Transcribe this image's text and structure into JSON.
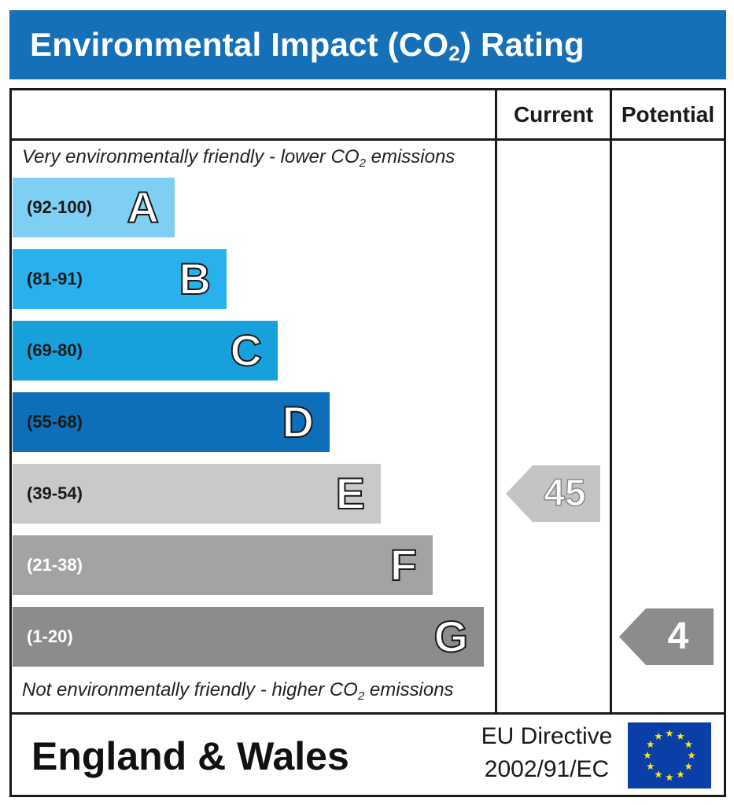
{
  "header": {
    "title_prefix": "Environmental Impact (CO",
    "title_sub": "2",
    "title_suffix": ") Rating"
  },
  "columns": {
    "current": "Current",
    "potential": "Potential"
  },
  "notes": {
    "top_prefix": "Very environmentally friendly - lower CO",
    "top_sub": "2",
    "top_suffix": " emissions",
    "bottom_prefix": "Not environmentally friendly - higher CO",
    "bottom_sub": "2",
    "bottom_suffix": " emissions"
  },
  "chart_data": {
    "type": "bar",
    "categories": [
      "A",
      "B",
      "C",
      "D",
      "E",
      "F",
      "G"
    ],
    "bands": [
      {
        "letter": "A",
        "range": "(92-100)",
        "min": 92,
        "max": 100,
        "color": "#7fcff4",
        "text_color": "#1a1a1a"
      },
      {
        "letter": "B",
        "range": "(81-91)",
        "min": 81,
        "max": 91,
        "color": "#29b1ed",
        "text_color": "#1a1a1a"
      },
      {
        "letter": "C",
        "range": "(69-80)",
        "min": 69,
        "max": 80,
        "color": "#17a1dc",
        "text_color": "#1a1a1a"
      },
      {
        "letter": "D",
        "range": "(55-68)",
        "min": 55,
        "max": 68,
        "color": "#0d6fba",
        "text_color": "#1a1a1a"
      },
      {
        "letter": "E",
        "range": "(39-54)",
        "min": 39,
        "max": 54,
        "color": "#c9c9c9",
        "text_color": "#1a1a1a"
      },
      {
        "letter": "F",
        "range": "(21-38)",
        "min": 21,
        "max": 38,
        "color": "#a3a3a3",
        "text_color": "#ffffff"
      },
      {
        "letter": "G",
        "range": "(1-20)",
        "min": 1,
        "max": 20,
        "color": "#8c8c8c",
        "text_color": "#ffffff"
      }
    ],
    "current": {
      "value": 45,
      "band": "E",
      "color": "#c4c4c4"
    },
    "potential": {
      "value": 4,
      "band": "G",
      "color": "#8c8c8c"
    }
  },
  "footer": {
    "region": "England & Wales",
    "directive_line1": "EU Directive",
    "directive_line2": "2002/91/EC",
    "flag_icon": "eu-flag-icon",
    "flag_color": "#0b3fa8",
    "star_color": "#f7e21b"
  }
}
